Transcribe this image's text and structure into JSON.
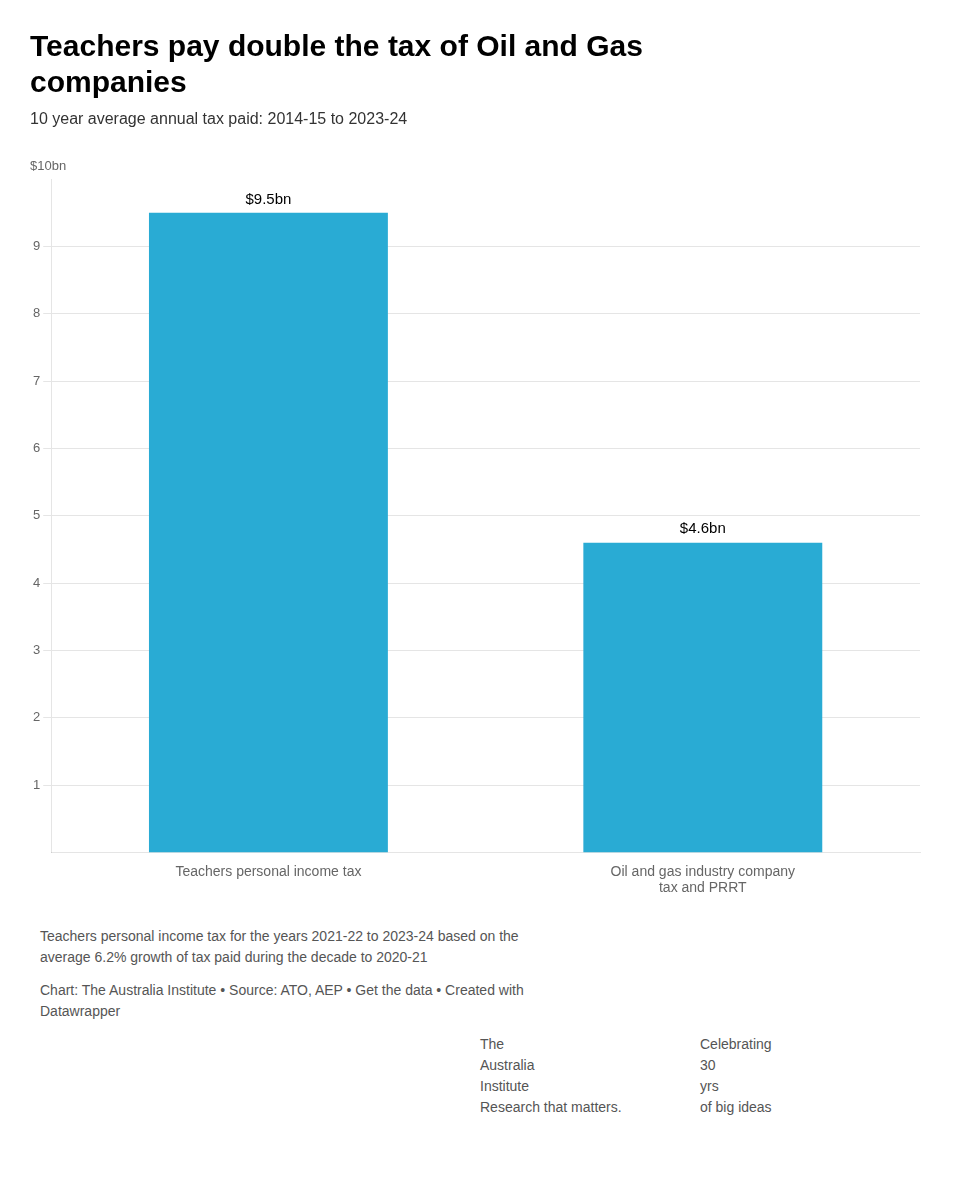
{
  "chart_data": {
    "type": "bar",
    "title": "Teachers pay double the tax of Oil and Gas\ncompanies",
    "subtitle": "10 year average annual tax paid: 2014-15 to 2023-24",
    "categories": [
      "Teachers personal income tax",
      "Oil and gas industry company\ntax and PRRT"
    ],
    "values": [
      9.5,
      4.6
    ],
    "value_labels": [
      "$9.5bn",
      "$4.6bn"
    ],
    "data_labels": true,
    "color": "#29ABD4",
    "ylim": [
      0,
      10
    ],
    "yticks": [
      1,
      2,
      3,
      4,
      5,
      6,
      7,
      8,
      9
    ],
    "ylabel": "$10bn",
    "grid": true,
    "annotations": [
      [
        "Teachers personal income tax for the years 2021-22 to 2023-24 based on the",
        "average 6.2% growth of tax paid during the decade to 2020-21"
      ],
      [
        "Chart: The Australia Institute • Source: ATO, AEP • Get the data • Created with",
        "Datawrapper"
      ],
      [
        "The",
        "Australia",
        "Institute",
        "Research that matters."
      ],
      [
        "Celebrating",
        "30",
        "yrs",
        "of big ideas"
      ]
    ]
  }
}
